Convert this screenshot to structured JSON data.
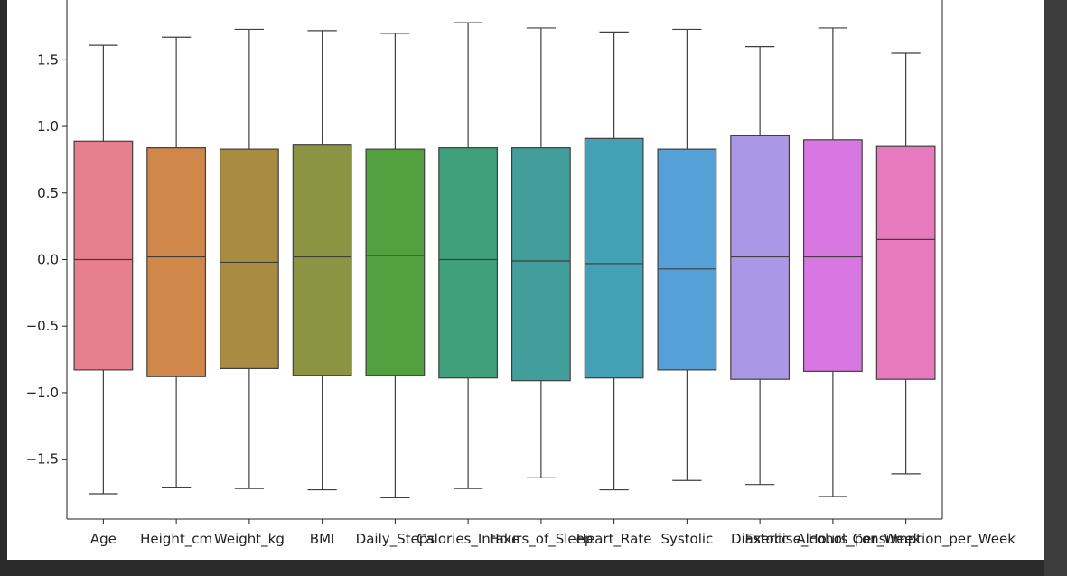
{
  "chart_data": {
    "type": "box",
    "title": "",
    "xlabel": "",
    "ylabel": "",
    "ylim": [
      -1.95,
      1.95
    ],
    "yticks": [
      -1.5,
      -1.0,
      -0.5,
      0.0,
      0.5,
      1.0,
      1.5
    ],
    "ytick_labels": [
      "−1.5",
      "−1.0",
      "−0.5",
      "0.0",
      "0.5",
      "1.0",
      "1.5"
    ],
    "grid": false,
    "categories": [
      "Age",
      "Height_cm",
      "Weight_kg",
      "BMI",
      "Daily_Steps",
      "Calories_Intake",
      "Hours_of_Sleep",
      "Heart_Rate",
      "Systolic",
      "Diastolic",
      "Exercise_Hours_per_Week",
      "Alcohol_Consumption_per_Week"
    ],
    "boxes": [
      {
        "name": "Age",
        "whisker_low": -1.76,
        "q1": -0.83,
        "median": 0.0,
        "q3": 0.89,
        "whisker_high": 1.61,
        "color": "#e87f8f"
      },
      {
        "name": "Height_cm",
        "whisker_low": -1.71,
        "q1": -0.88,
        "median": 0.02,
        "q3": 0.84,
        "whisker_high": 1.67,
        "color": "#d0874a"
      },
      {
        "name": "Weight_kg",
        "whisker_low": -1.72,
        "q1": -0.82,
        "median": -0.02,
        "q3": 0.83,
        "whisker_high": 1.73,
        "color": "#a98b42"
      },
      {
        "name": "BMI",
        "whisker_low": -1.73,
        "q1": -0.87,
        "median": 0.02,
        "q3": 0.86,
        "whisker_high": 1.72,
        "color": "#8a9442"
      },
      {
        "name": "Daily_Steps",
        "whisker_low": -1.79,
        "q1": -0.87,
        "median": 0.03,
        "q3": 0.83,
        "whisker_high": 1.7,
        "color": "#53a040"
      },
      {
        "name": "Calories_Intake",
        "whisker_low": -1.72,
        "q1": -0.89,
        "median": 0.0,
        "q3": 0.84,
        "whisker_high": 1.78,
        "color": "#40a07e"
      },
      {
        "name": "Hours_of_Sleep",
        "whisker_low": -1.64,
        "q1": -0.91,
        "median": -0.01,
        "q3": 0.84,
        "whisker_high": 1.74,
        "color": "#419e9b"
      },
      {
        "name": "Heart_Rate",
        "whisker_low": -1.73,
        "q1": -0.89,
        "median": -0.03,
        "q3": 0.91,
        "whisker_high": 1.71,
        "color": "#44a0b5"
      },
      {
        "name": "Systolic",
        "whisker_low": -1.66,
        "q1": -0.83,
        "median": -0.07,
        "q3": 0.83,
        "whisker_high": 1.73,
        "color": "#55a0d6"
      },
      {
        "name": "Diastolic",
        "whisker_low": -1.69,
        "q1": -0.9,
        "median": 0.02,
        "q3": 0.93,
        "whisker_high": 1.6,
        "color": "#aa97e6"
      },
      {
        "name": "Exercise_Hours_per_Week",
        "whisker_low": -1.78,
        "q1": -0.84,
        "median": 0.02,
        "q3": 0.9,
        "whisker_high": 1.74,
        "color": "#d877e2"
      },
      {
        "name": "Alcohol_Consumption_per_Week",
        "whisker_low": -1.61,
        "q1": -0.9,
        "median": 0.15,
        "q3": 0.85,
        "whisker_high": 1.55,
        "color": "#e67abd"
      }
    ]
  }
}
